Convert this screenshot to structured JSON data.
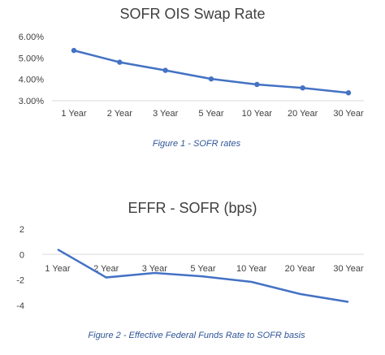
{
  "chart_data": [
    {
      "type": "line",
      "title": "SOFR OIS Swap Rate",
      "xlabel": "",
      "ylabel": "",
      "categories": [
        "1 Year",
        "2 Year",
        "3 Year",
        "5 Year",
        "10 Year",
        "20 Year",
        "30 Year"
      ],
      "series": [
        {
          "values": [
            5.35,
            4.8,
            4.42,
            4.02,
            3.76,
            3.6,
            3.37
          ],
          "color": "#4472c4",
          "markers": true
        }
      ],
      "ylim": [
        3.0,
        6.0
      ],
      "yticks": [
        3.0,
        4.0,
        5.0,
        6.0
      ],
      "ytick_labels": [
        "3.00%",
        "4.00%",
        "5.00%",
        "6.00%"
      ],
      "grid": false,
      "legend": "none"
    },
    {
      "type": "line",
      "title": "EFFR - SOFR (bps)",
      "xlabel": "",
      "ylabel": "",
      "categories": [
        "1 Year",
        "2 Year",
        "3 Year",
        "5 Year",
        "10 Year",
        "20 Year",
        "30 Year"
      ],
      "series": [
        {
          "values": [
            0.4,
            -1.8,
            -1.45,
            -1.72,
            -2.15,
            -3.1,
            -3.72
          ],
          "color": "#4472c4",
          "markers": false
        }
      ],
      "ylim": [
        -4,
        2
      ],
      "yticks": [
        -4,
        -2,
        0,
        2
      ],
      "ytick_labels": [
        "-4",
        "-2",
        "0",
        "2"
      ],
      "grid": false,
      "legend": "none"
    }
  ],
  "captions": [
    "Figure 1 - SOFR rates",
    "Figure 2 - Effective Federal Funds Rate to SOFR basis"
  ]
}
